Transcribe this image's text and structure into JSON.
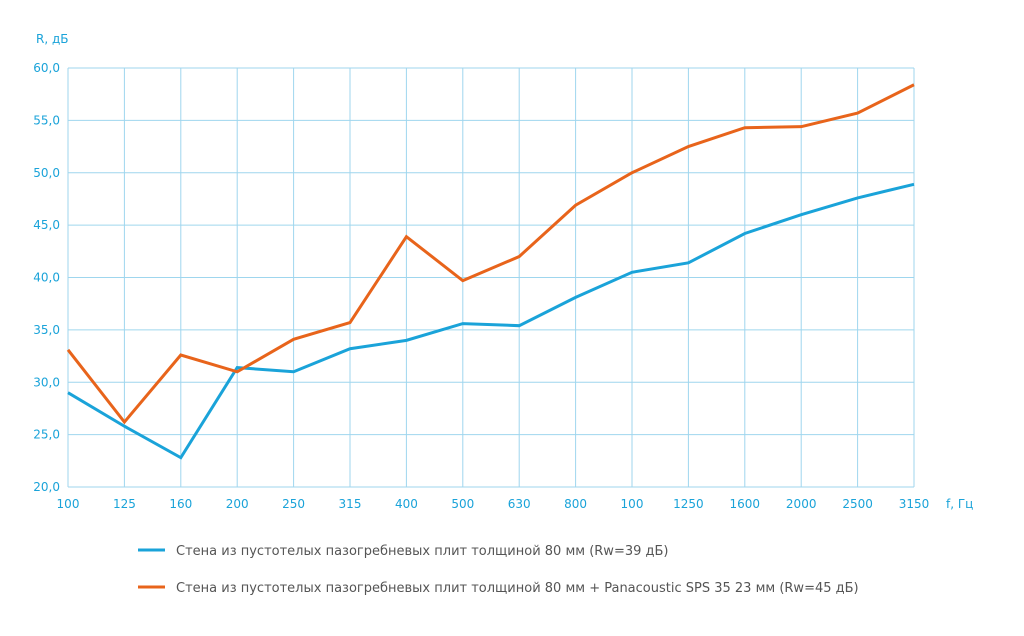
{
  "chart_data": {
    "type": "line",
    "ylabel": "R, дБ",
    "xlabel": "f, Гц",
    "categories": [
      "100",
      "125",
      "160",
      "200",
      "250",
      "315",
      "400",
      "500",
      "630",
      "800",
      "100",
      "1250",
      "1600",
      "2000",
      "2500",
      "3150"
    ],
    "ylim": [
      20,
      60
    ],
    "yticks": [
      "20,0",
      "25,0",
      "30,0",
      "35,0",
      "40,0",
      "45,0",
      "50,0",
      "55,0",
      "60,0"
    ],
    "grid": true,
    "legend_position": "bottom",
    "series": [
      {
        "name": "Стена из пустотелых пазогребневых плит толщиной  80 мм (Rw=39 дБ)",
        "color": "#1aa3d9",
        "values": [
          29.0,
          25.8,
          22.8,
          31.4,
          31.0,
          33.2,
          34.0,
          35.6,
          35.4,
          38.1,
          40.5,
          41.4,
          44.2,
          46.0,
          47.6,
          48.9
        ]
      },
      {
        "name": "Стена из пустотелых пазогребневых плит толщиной  80 мм + Panacoustic SPS 35  23 мм (Rw=45 дБ)",
        "color": "#e8641b",
        "values": [
          33.1,
          26.2,
          32.6,
          31.0,
          34.1,
          35.7,
          43.9,
          39.7,
          42.0,
          46.9,
          50.0,
          52.5,
          54.3,
          54.4,
          55.7,
          58.4
        ]
      }
    ]
  }
}
